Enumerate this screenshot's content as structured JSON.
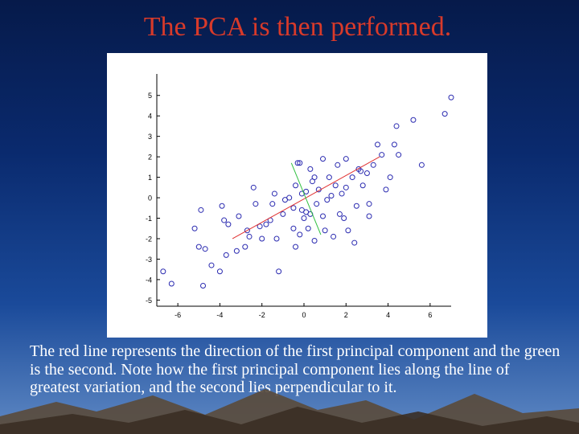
{
  "slide": {
    "title": "The PCA is then performed.",
    "caption": "The red line represents the direction of the first principal component and the green is the second. Note how the first principal component lies along the line of greatest variation, and the second lies perpendicular to it."
  },
  "colors": {
    "title": "#d83a2a",
    "points": "#2a2ab0",
    "first_component": "#e03030",
    "second_component": "#30c040",
    "axis": "#000000"
  },
  "chart_data": {
    "type": "scatter",
    "xlim": [
      -7,
      7
    ],
    "ylim": [
      -5.3,
      5.5
    ],
    "x_ticks": [
      -6,
      -4,
      -2,
      0,
      2,
      4,
      6
    ],
    "y_ticks": [
      -5,
      -4,
      -3,
      -2,
      -1,
      0,
      1,
      2,
      3,
      4,
      5
    ],
    "grid": false,
    "points": [
      [
        -6.7,
        -3.6
      ],
      [
        -6.3,
        -4.2
      ],
      [
        -5.2,
        -1.5
      ],
      [
        -4.9,
        -0.6
      ],
      [
        -5.0,
        -2.4
      ],
      [
        -4.7,
        -2.5
      ],
      [
        -4.8,
        -4.3
      ],
      [
        -4.4,
        -3.3
      ],
      [
        -4.0,
        -3.6
      ],
      [
        -3.7,
        -2.8
      ],
      [
        -3.8,
        -1.1
      ],
      [
        -3.6,
        -1.3
      ],
      [
        -3.9,
        -0.4
      ],
      [
        -3.2,
        -2.6
      ],
      [
        -3.1,
        -0.9
      ],
      [
        -2.8,
        -2.4
      ],
      [
        -2.7,
        -1.6
      ],
      [
        -2.6,
        -1.9
      ],
      [
        -2.4,
        0.5
      ],
      [
        -2.3,
        -0.3
      ],
      [
        -2.1,
        -1.4
      ],
      [
        -2.0,
        -2.0
      ],
      [
        -1.8,
        -1.3
      ],
      [
        -1.6,
        -1.1
      ],
      [
        -1.5,
        -0.3
      ],
      [
        -1.4,
        0.2
      ],
      [
        -1.3,
        -2.0
      ],
      [
        -1.2,
        -3.6
      ],
      [
        -1.0,
        -0.8
      ],
      [
        -0.9,
        -0.1
      ],
      [
        -0.7,
        0.0
      ],
      [
        -0.5,
        -0.5
      ],
      [
        -0.5,
        -1.5
      ],
      [
        -0.4,
        -2.4
      ],
      [
        -0.4,
        0.6
      ],
      [
        -0.3,
        1.7
      ],
      [
        -0.2,
        1.7
      ],
      [
        -0.2,
        -1.8
      ],
      [
        -0.1,
        -0.6
      ],
      [
        -0.1,
        0.2
      ],
      [
        0.0,
        -1.0
      ],
      [
        0.1,
        0.3
      ],
      [
        0.1,
        -0.7
      ],
      [
        0.2,
        -1.5
      ],
      [
        0.3,
        1.4
      ],
      [
        0.3,
        -0.8
      ],
      [
        0.4,
        0.8
      ],
      [
        0.5,
        -2.1
      ],
      [
        0.5,
        1.0
      ],
      [
        0.6,
        -0.3
      ],
      [
        0.7,
        0.4
      ],
      [
        0.9,
        -0.9
      ],
      [
        0.9,
        1.9
      ],
      [
        1.0,
        -1.6
      ],
      [
        1.1,
        -0.1
      ],
      [
        1.2,
        1.0
      ],
      [
        1.3,
        0.1
      ],
      [
        1.4,
        -1.9
      ],
      [
        1.5,
        0.6
      ],
      [
        1.6,
        1.6
      ],
      [
        1.7,
        -0.8
      ],
      [
        1.8,
        0.2
      ],
      [
        1.9,
        -1.0
      ],
      [
        2.0,
        0.5
      ],
      [
        2.0,
        1.9
      ],
      [
        2.1,
        -1.6
      ],
      [
        2.3,
        1.0
      ],
      [
        2.4,
        -2.2
      ],
      [
        2.5,
        -0.4
      ],
      [
        2.6,
        1.4
      ],
      [
        2.7,
        1.3
      ],
      [
        2.8,
        0.6
      ],
      [
        3.0,
        1.2
      ],
      [
        3.1,
        -0.3
      ],
      [
        3.1,
        -0.9
      ],
      [
        3.3,
        1.6
      ],
      [
        3.5,
        2.6
      ],
      [
        3.7,
        2.1
      ],
      [
        3.9,
        0.4
      ],
      [
        4.1,
        1.0
      ],
      [
        4.3,
        2.6
      ],
      [
        4.4,
        3.5
      ],
      [
        4.5,
        2.1
      ],
      [
        5.2,
        3.8
      ],
      [
        5.6,
        1.6
      ],
      [
        6.7,
        4.1
      ],
      [
        7.0,
        4.9
      ]
    ],
    "lines": [
      {
        "points": [
          [
            -3.4,
            -2.0
          ],
          [
            3.6,
            2.0
          ]
        ]
      },
      {
        "points": [
          [
            -0.6,
            1.7
          ],
          [
            0.8,
            -1.8
          ]
        ]
      }
    ]
  }
}
